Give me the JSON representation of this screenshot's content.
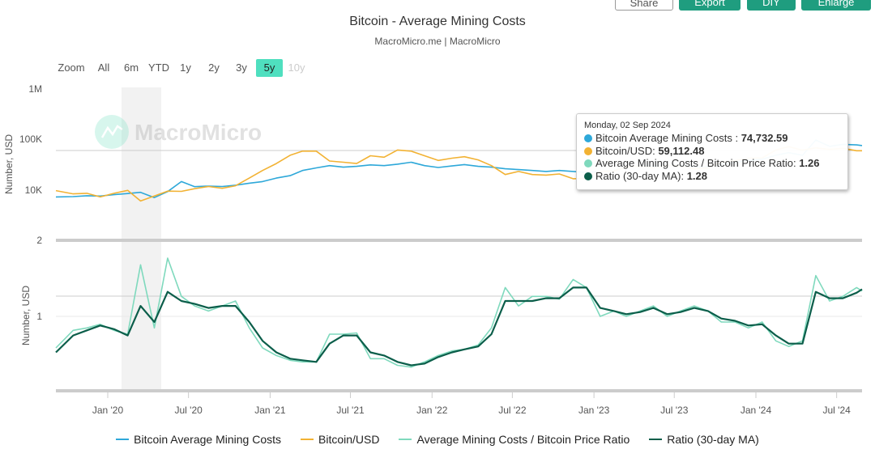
{
  "toolbar": {
    "share": "Share",
    "export": "Export",
    "diy": "DIY",
    "enlarge": "Enlarge"
  },
  "title": "Bitcoin - Average Mining Costs",
  "subtitle": "MacroMicro.me | MacroMicro",
  "watermark": "MacroMicro",
  "range_selector": {
    "label": "Zoom",
    "buttons": [
      "All",
      "6m",
      "YTD",
      "1y",
      "2y",
      "3y",
      "5y",
      "10y"
    ],
    "selected": "5y",
    "disabled": [
      "10y"
    ]
  },
  "tooltip": {
    "date": "Monday, 02 Sep 2024",
    "rows": [
      {
        "label": "Bitcoin Average Mining Costs : ",
        "value": "74,732.59",
        "color": "#2ea8d9"
      },
      {
        "label": "Bitcoin/USD: ",
        "value": "59,112.48",
        "color": "#f2b233"
      },
      {
        "label": "Average Mining Costs / Bitcoin Price Ratio: ",
        "value": "1.26",
        "color": "#7fd9bd"
      },
      {
        "label": "Ratio (30-day MA): ",
        "value": "1.28",
        "color": "#0b5e4a"
      }
    ]
  },
  "chart_data": [
    {
      "type": "line",
      "ylabel": "Number, USD",
      "yscale": "log",
      "ylim": [
        5000,
        1000000
      ],
      "ytick_labels": [
        "10K",
        "100K",
        "1M"
      ],
      "ytick_values": [
        10000,
        100000,
        1000000
      ],
      "x": [
        "2019-09",
        "2019-10",
        "2019-11",
        "2019-12",
        "2020-01",
        "2020-02",
        "2020-03",
        "2020-04",
        "2020-05",
        "2020-06",
        "2020-07",
        "2020-08",
        "2020-09",
        "2020-10",
        "2020-11",
        "2020-12",
        "2021-01",
        "2021-02",
        "2021-03",
        "2021-04",
        "2021-05",
        "2021-06",
        "2021-07",
        "2021-08",
        "2021-09",
        "2021-10",
        "2021-11",
        "2021-12",
        "2022-01",
        "2022-02",
        "2022-03",
        "2022-04",
        "2022-05",
        "2022-06",
        "2022-07",
        "2022-08",
        "2022-09",
        "2022-10",
        "2022-11",
        "2022-12",
        "2023-01",
        "2023-02",
        "2023-03",
        "2023-04",
        "2023-05",
        "2023-06",
        "2023-07",
        "2023-08",
        "2023-09",
        "2023-10",
        "2023-11",
        "2023-12",
        "2024-01",
        "2024-02",
        "2024-03",
        "2024-04",
        "2024-05",
        "2024-06",
        "2024-07",
        "2024-08",
        "2024-09-02"
      ],
      "series": [
        {
          "name": "Bitcoin Average Mining Costs",
          "color": "#2ea8d9",
          "values": [
            7200,
            7300,
            7600,
            7500,
            8000,
            8400,
            8900,
            7000,
            9200,
            14500,
            11500,
            11800,
            11600,
            12300,
            13500,
            14500,
            17000,
            19000,
            24000,
            27000,
            30000,
            28000,
            29000,
            31000,
            30000,
            32000,
            35000,
            30000,
            27500,
            29500,
            31500,
            29000,
            28000,
            26000,
            25000,
            24000,
            23000,
            24000,
            23000,
            22000,
            23000,
            24000,
            28000,
            30000,
            29000,
            31000,
            30000,
            28500,
            28000,
            32000,
            35000,
            38000,
            40000,
            48000,
            54000,
            48000,
            96000,
            72000,
            79000,
            77000,
            74732.59
          ]
        },
        {
          "name": "Bitcoin/USD",
          "color": "#f2b233",
          "values": [
            9600,
            8300,
            8500,
            7200,
            8500,
            9700,
            6000,
            7500,
            9400,
            9300,
            10500,
            11600,
            10700,
            12000,
            17000,
            24000,
            33000,
            48000,
            58000,
            58000,
            37000,
            35000,
            33000,
            47000,
            44000,
            61000,
            58000,
            47000,
            38000,
            42000,
            45000,
            39000,
            30000,
            20000,
            23000,
            20000,
            19500,
            20500,
            16500,
            16800,
            23000,
            23500,
            28000,
            29300,
            27000,
            30500,
            29300,
            26000,
            27000,
            34500,
            37700,
            42300,
            42600,
            61000,
            71000,
            60600,
            67500,
            62700,
            66000,
            59000,
            59112.48
          ]
        }
      ]
    },
    {
      "type": "line",
      "ylabel": "Number, USD",
      "yscale": "log",
      "ylim": [
        0.5,
        2
      ],
      "ytick_labels": [
        "1",
        "2"
      ],
      "ytick_values": [
        1,
        2
      ],
      "reference_line": 1.2,
      "x_tick_labels": [
        "Jan '20",
        "Jul '20",
        "Jan '21",
        "Jul '21",
        "Jan '22",
        "Jul '22",
        "Jan '23",
        "Jul '23",
        "Jan '24",
        "Jul '24"
      ],
      "shaded_band": [
        "2020-03",
        "2020-06"
      ],
      "series": [
        {
          "name": "Average Mining Costs / Bitcoin Price Ratio",
          "color": "#7fd9bd",
          "values": [
            0.75,
            0.88,
            0.9,
            0.93,
            0.88,
            0.85,
            1.6,
            0.9,
            1.7,
            1.2,
            1.1,
            1.05,
            1.1,
            1.15,
            0.9,
            0.75,
            0.7,
            0.67,
            0.66,
            0.66,
            0.85,
            0.85,
            0.86,
            0.68,
            0.68,
            0.64,
            0.63,
            0.66,
            0.7,
            0.73,
            0.74,
            0.77,
            0.9,
            1.3,
            1.1,
            1.2,
            1.2,
            1.17,
            1.4,
            1.3,
            1.0,
            1.05,
            1.0,
            1.05,
            1.1,
            1.0,
            1.05,
            1.1,
            1.05,
            0.95,
            0.95,
            0.9,
            0.95,
            0.8,
            0.76,
            0.8,
            1.45,
            1.15,
            1.2,
            1.3,
            1.26
          ]
        },
        {
          "name": "Ratio (30-day MA)",
          "color": "#0b5e4a",
          "values": [
            0.72,
            0.84,
            0.88,
            0.92,
            0.89,
            0.84,
            1.1,
            0.95,
            1.25,
            1.15,
            1.12,
            1.08,
            1.1,
            1.1,
            0.95,
            0.8,
            0.72,
            0.68,
            0.67,
            0.66,
            0.78,
            0.84,
            0.84,
            0.72,
            0.7,
            0.66,
            0.64,
            0.65,
            0.69,
            0.72,
            0.74,
            0.76,
            0.85,
            1.15,
            1.15,
            1.15,
            1.18,
            1.18,
            1.3,
            1.3,
            1.08,
            1.05,
            1.02,
            1.04,
            1.08,
            1.02,
            1.04,
            1.08,
            1.05,
            0.98,
            0.96,
            0.92,
            0.93,
            0.84,
            0.78,
            0.78,
            1.25,
            1.18,
            1.18,
            1.24,
            1.28
          ]
        }
      ]
    }
  ]
}
